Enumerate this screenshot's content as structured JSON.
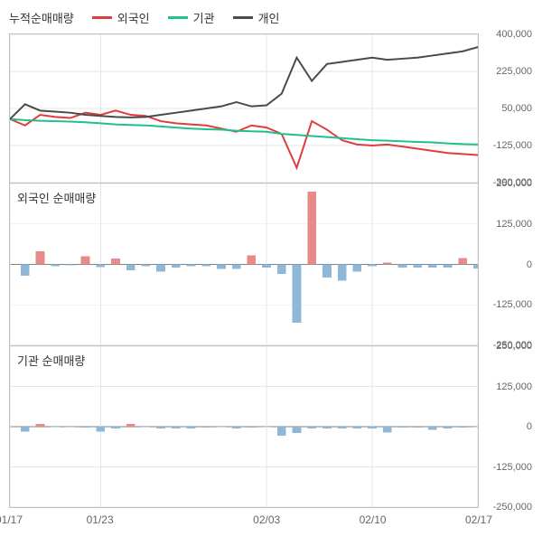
{
  "legend": {
    "title": "누적순매매량",
    "items": [
      {
        "label": "외국인",
        "color": "#e03c3c"
      },
      {
        "label": "기관",
        "color": "#1fbf8f"
      },
      {
        "label": "개인",
        "color": "#4a4a4a"
      }
    ]
  },
  "x_axis": {
    "categories": [
      "01/17",
      "01/18",
      "01/19",
      "01/20",
      "01/21",
      "01/22",
      "01/23",
      "01/24",
      "01/25",
      "01/26",
      "01/27",
      "01/28",
      "01/29",
      "01/30",
      "01/31",
      "02/01",
      "02/02",
      "02/03",
      "02/04",
      "02/05",
      "02/06",
      "02/07",
      "02/08",
      "02/09",
      "02/10",
      "02/11",
      "02/12",
      "02/13",
      "02/14",
      "02/15",
      "02/16",
      "02/17"
    ],
    "tick_labels": [
      "01/17",
      "01/23",
      "02/03",
      "02/10",
      "02/17"
    ],
    "tick_indices": [
      0,
      6,
      17,
      24,
      31
    ]
  },
  "panels": [
    {
      "id": "cumulative",
      "title": "누적순매매량",
      "title_visible": false,
      "type": "line",
      "height": 165,
      "ylim": [
        -300000,
        400000
      ],
      "yticks": [
        -300000,
        -125000,
        50000,
        225000,
        400000
      ],
      "ytick_labels": [
        "-300,000",
        "-125,000",
        "50,000",
        "225,000",
        "400,000"
      ],
      "grid_color": "#e5e5e5",
      "zero_line_color": "#808080",
      "background": "#ffffff",
      "series": [
        {
          "name": "foreigner",
          "color": "#e03c3c",
          "values": [
            0,
            -30000,
            20000,
            10000,
            5000,
            30000,
            20000,
            40000,
            20000,
            15000,
            -10000,
            -20000,
            -25000,
            -30000,
            -45000,
            -60000,
            -30000,
            -40000,
            -70000,
            -230000,
            -10000,
            -50000,
            -100000,
            -120000,
            -125000,
            -120000,
            -130000,
            -140000,
            -150000,
            -160000,
            -165000,
            -170000
          ]
        },
        {
          "name": "institution",
          "color": "#1fbf8f",
          "values": [
            0,
            -5000,
            -8000,
            -10000,
            -12000,
            -15000,
            -20000,
            -25000,
            -28000,
            -30000,
            -35000,
            -40000,
            -45000,
            -48000,
            -50000,
            -55000,
            -58000,
            -60000,
            -70000,
            -75000,
            -80000,
            -85000,
            -90000,
            -95000,
            -100000,
            -102000,
            -105000,
            -108000,
            -110000,
            -115000,
            -118000,
            -120000
          ]
        },
        {
          "name": "individual",
          "color": "#4a4a4a",
          "values": [
            0,
            70000,
            40000,
            35000,
            30000,
            20000,
            15000,
            10000,
            8000,
            10000,
            20000,
            30000,
            40000,
            50000,
            60000,
            80000,
            60000,
            65000,
            120000,
            290000,
            180000,
            260000,
            270000,
            280000,
            290000,
            280000,
            285000,
            290000,
            300000,
            310000,
            320000,
            340000
          ]
        }
      ]
    },
    {
      "id": "foreigner",
      "title": "외국인 순매매량",
      "title_visible": true,
      "type": "bar",
      "height": 180,
      "ylim": [
        -250000,
        250000
      ],
      "yticks": [
        -250000,
        -125000,
        0,
        125000,
        250000
      ],
      "ytick_labels": [
        "-250,000",
        "-125,000",
        "0",
        "125,000",
        "250,000"
      ],
      "grid_color": "#e5e5e5",
      "zero_line_color": "#808080",
      "background": "#ffffff",
      "pos_color": "#e88a8a",
      "neg_color": "#8fb8d8",
      "bar_width": 0.6,
      "values": [
        0,
        -35000,
        40000,
        -5000,
        -3000,
        25000,
        -8000,
        18000,
        -18000,
        -5000,
        -22000,
        -10000,
        -5000,
        -5000,
        -14000,
        -14000,
        28000,
        -10000,
        -30000,
        -180000,
        225000,
        -40000,
        -50000,
        -22000,
        -5000,
        6000,
        -10000,
        -10000,
        -10000,
        -10000,
        20000,
        -12000
      ]
    },
    {
      "id": "institution",
      "title": "기관 순매매량",
      "title_visible": true,
      "type": "bar",
      "height": 180,
      "ylim": [
        -250000,
        250000
      ],
      "yticks": [
        -250000,
        -125000,
        0,
        125000,
        250000
      ],
      "ytick_labels": [
        "-250,000",
        "-125,000",
        "0",
        "125,000",
        "250,000"
      ],
      "grid_color": "#e5e5e5",
      "zero_line_color": "#808080",
      "background": "#ffffff",
      "pos_color": "#e88a8a",
      "neg_color": "#8fb8d8",
      "bar_width": 0.6,
      "values": [
        0,
        -15000,
        8000,
        -2000,
        -2000,
        -3000,
        -15000,
        -5000,
        8000,
        -2000,
        -5000,
        -5000,
        -5000,
        -3000,
        -2000,
        -5000,
        -3000,
        -2000,
        -28000,
        -20000,
        -5000,
        -5000,
        -5000,
        -5000,
        -5000,
        -18000,
        -3000,
        -3000,
        -10000,
        -5000,
        -3000,
        -2000
      ]
    }
  ],
  "fonts": {
    "legend_size": 13,
    "tick_size": 11,
    "title_size": 13
  }
}
